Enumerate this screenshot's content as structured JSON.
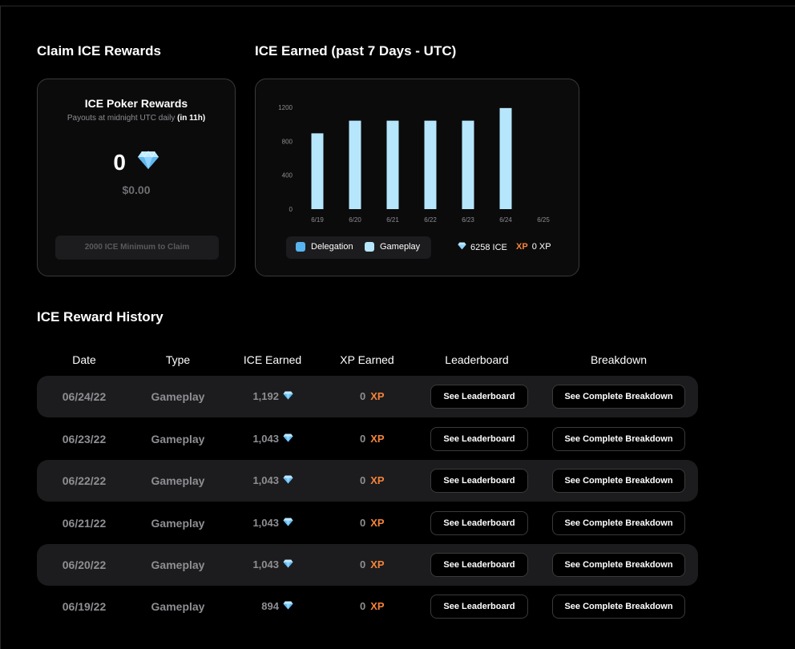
{
  "claim": {
    "section_title": "Claim ICE Rewards",
    "card_title": "ICE Poker Rewards",
    "payout_text": "Payouts at midnight UTC daily",
    "payout_time": "(in 11h)",
    "amount": "0",
    "usd": "$0.00",
    "min_claim_label": "2000 ICE Minimum to Claim"
  },
  "earned": {
    "section_title": "ICE Earned (past 7 Days - UTC)",
    "legend": [
      {
        "label": "Delegation",
        "color": "#58b4f0"
      },
      {
        "label": "Gameplay",
        "color": "#b6e6fb"
      }
    ],
    "total_ice": "6258 ICE",
    "xp_label": "XP",
    "total_xp": "0 XP"
  },
  "chart_data": {
    "type": "bar",
    "categories": [
      "6/19",
      "6/20",
      "6/21",
      "6/22",
      "6/23",
      "6/24",
      "6/25"
    ],
    "series": [
      {
        "name": "Gameplay",
        "values": [
          894,
          1043,
          1043,
          1043,
          1043,
          1192,
          0
        ]
      },
      {
        "name": "Delegation",
        "values": [
          0,
          0,
          0,
          0,
          0,
          0,
          0
        ]
      }
    ],
    "yticks": [
      0,
      400,
      800,
      1200
    ],
    "ylim": [
      0,
      1300
    ],
    "xlabel": "",
    "ylabel": "",
    "grid": false,
    "legend_position": "bottom-left"
  },
  "history": {
    "section_title": "ICE Reward History",
    "columns": [
      "Date",
      "Type",
      "ICE Earned",
      "XP Earned",
      "Leaderboard",
      "Breakdown"
    ],
    "xp_suffix": "XP",
    "leaderboard_label": "See Leaderboard",
    "breakdown_label": "See Complete Breakdown",
    "rows": [
      {
        "date": "06/24/22",
        "type": "Gameplay",
        "ice": "1,192",
        "xp": "0"
      },
      {
        "date": "06/23/22",
        "type": "Gameplay",
        "ice": "1,043",
        "xp": "0"
      },
      {
        "date": "06/22/22",
        "type": "Gameplay",
        "ice": "1,043",
        "xp": "0"
      },
      {
        "date": "06/21/22",
        "type": "Gameplay",
        "ice": "1,043",
        "xp": "0"
      },
      {
        "date": "06/20/22",
        "type": "Gameplay",
        "ice": "1,043",
        "xp": "0"
      },
      {
        "date": "06/19/22",
        "type": "Gameplay",
        "ice": "894",
        "xp": "0"
      }
    ]
  },
  "icons": {
    "gem": "diamond-icon",
    "gem_colors": [
      "#bfe9ff",
      "#8fd3ff",
      "#5fb8f0"
    ]
  }
}
